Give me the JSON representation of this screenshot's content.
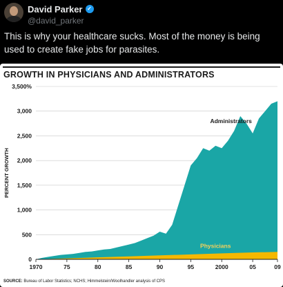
{
  "post": {
    "display_name": "David Parker",
    "handle": "@david_parker",
    "text": "This is why your healthcare sucks. Most of the money is being used to create fake jobs for parasites.",
    "verified_icon": "check-badge-icon",
    "verified_color": "#1d9bf0"
  },
  "chart_data": {
    "type": "area",
    "title": "GROWTH IN PHYSICIANS AND ADMINISTRATORS",
    "ylabel": "PERCENT GROWTH",
    "xlabel": "",
    "ylim": [
      0,
      3500
    ],
    "xlim": [
      1970,
      2009
    ],
    "yticks": [
      0,
      500,
      1000,
      1500,
      2000,
      2500,
      3000,
      3500
    ],
    "ytick_labels": [
      "0",
      "500",
      "1,000",
      "1,500",
      "2,000",
      "2,500",
      "3,000",
      "3,500%"
    ],
    "xticks": [
      1970,
      1975,
      1980,
      1985,
      1990,
      1995,
      2000,
      2005,
      2009
    ],
    "xtick_labels": [
      "1970",
      "75",
      "80",
      "85",
      "90",
      "95",
      "2000",
      "05",
      "09"
    ],
    "grid": true,
    "series": [
      {
        "name": "Administrators",
        "color": "#1aa6a6",
        "x": [
          1970,
          1971,
          1972,
          1973,
          1974,
          1975,
          1976,
          1977,
          1978,
          1979,
          1980,
          1981,
          1982,
          1983,
          1984,
          1985,
          1986,
          1987,
          1988,
          1989,
          1990,
          1991,
          1992,
          1993,
          1994,
          1995,
          1996,
          1997,
          1998,
          1999,
          2000,
          2001,
          2002,
          2003,
          2004,
          2005,
          2006,
          2007,
          2008,
          2009
        ],
        "values": [
          0,
          30,
          50,
          70,
          90,
          100,
          110,
          130,
          150,
          160,
          180,
          200,
          210,
          240,
          270,
          300,
          330,
          380,
          430,
          480,
          560,
          520,
          700,
          1100,
          1500,
          1900,
          2050,
          2250,
          2200,
          2300,
          2250,
          2400,
          2600,
          2900,
          2750,
          2550,
          2850,
          3000,
          3150,
          3200
        ]
      },
      {
        "name": "Physicians",
        "color": "#f5b800",
        "x": [
          1970,
          1975,
          1980,
          1985,
          1990,
          1995,
          2000,
          2005,
          2009
        ],
        "values": [
          0,
          20,
          40,
          60,
          80,
          100,
          120,
          140,
          150
        ]
      }
    ],
    "annotations": [
      "Administrators",
      "Physicians"
    ],
    "source_label": "SOURCE:",
    "source_text": "Bureau of Labor Statistics; NCHS; Himmelstein/Woolhandler analysis of CPS"
  }
}
